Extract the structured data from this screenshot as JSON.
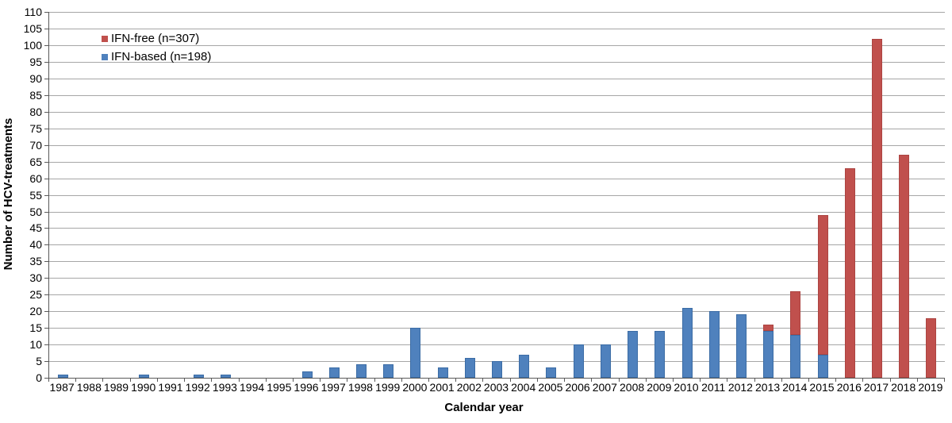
{
  "chart_data": {
    "type": "bar",
    "stacked": true,
    "title": "",
    "xlabel": "Calendar year",
    "ylabel": "Number of HCV-treatments",
    "ylim": [
      0,
      110
    ],
    "ytick_step": 5,
    "grid": "horizontal",
    "legend_position": "top-left-inside",
    "categories": [
      "1987",
      "1988",
      "1989",
      "1990",
      "1991",
      "1992",
      "1993",
      "1994",
      "1995",
      "1996",
      "1997",
      "1998",
      "1999",
      "2000",
      "2001",
      "2002",
      "2003",
      "2004",
      "2005",
      "2006",
      "2007",
      "2008",
      "2009",
      "2010",
      "2011",
      "2012",
      "2013",
      "2014",
      "2015",
      "2016",
      "2017",
      "2018",
      "2019"
    ],
    "series": [
      {
        "id": "ifn-based",
        "name": "IFN-based",
        "legend_label": "IFN-based (n=198)",
        "color": "#4F81BD",
        "border_color": "#3B6CA5",
        "values": [
          1,
          0,
          0,
          1,
          0,
          1,
          1,
          0,
          0,
          2,
          3,
          4,
          4,
          15,
          3,
          6,
          5,
          7,
          3,
          10,
          10,
          14,
          14,
          21,
          20,
          19,
          14,
          13,
          7,
          0,
          0,
          0,
          0
        ]
      },
      {
        "id": "ifn-free",
        "name": "IFN-free",
        "legend_label": "IFN-free (n=307)",
        "color": "#C0504D",
        "border_color": "#AC4441",
        "values": [
          0,
          0,
          0,
          0,
          0,
          0,
          0,
          0,
          0,
          0,
          0,
          0,
          0,
          0,
          0,
          0,
          0,
          0,
          0,
          0,
          0,
          0,
          0,
          0,
          0,
          0,
          2,
          13,
          42,
          63,
          102,
          67,
          18
        ]
      }
    ],
    "yticks": [
      0,
      5,
      10,
      15,
      20,
      25,
      30,
      35,
      40,
      45,
      50,
      55,
      60,
      65,
      70,
      75,
      80,
      85,
      90,
      95,
      100,
      105,
      110
    ]
  },
  "legend": {
    "items": [
      {
        "label": "IFN-free (n=307)",
        "color": "#C0504D"
      },
      {
        "label": "IFN-based (n=198)",
        "color": "#4F81BD"
      }
    ]
  },
  "colors": {
    "background": "#FFFFFF",
    "gridline": "#A6A6A6",
    "axis_line": "#595959",
    "text": "#000000"
  }
}
